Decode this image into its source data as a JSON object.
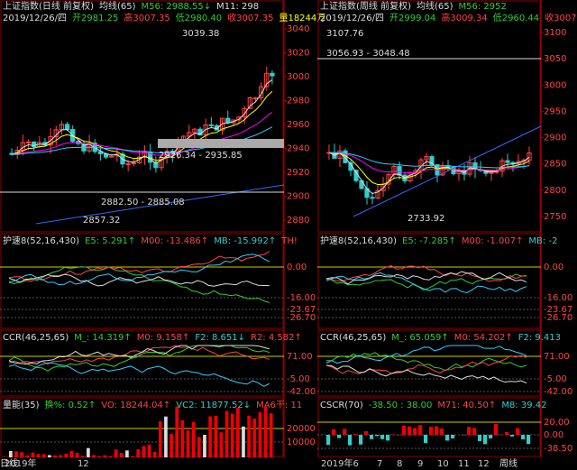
{
  "left": {
    "title": "上证指数(日线 前复权)",
    "header": [
      "均线(65)",
      "M56: 2988.55↓",
      "M11: 298"
    ],
    "info": [
      "2019/12/26/四",
      "开2981.25",
      "高3007.35",
      "低2980.40",
      "收3007.35",
      "量18244万"
    ],
    "axis": [
      "3040",
      "3020",
      "3000",
      "2980",
      "2960",
      "2940",
      "2920",
      "2900",
      "2880"
    ],
    "notes": [
      "3039.38",
      "2926.34 - 2935.85",
      "2882.50 - 2885.08",
      "2857.32"
    ],
    "panels": [
      {
        "header": [
          "护速8(52,16,430)",
          "E5: 5.291↑",
          "M00: -13.486↑",
          "MB: -15.992↑",
          "TH!"
        ],
        "axis": [
          "0.00",
          "-16.00",
          "-23.67",
          "-26.70"
        ]
      },
      {
        "header": [
          "CCR(46,25,65)",
          "M_: 14.319↑",
          "M0: 9.158↑",
          "F2: 8.651↓",
          "R2: 4.582↑"
        ],
        "axis": [
          "71.00",
          "-5.00",
          "-42.00"
        ]
      },
      {
        "header": [
          "量能(35)",
          "换%: 0.52↑",
          "VO: 18244.04↑",
          "VC2: 11877.52↓",
          "MA6干: 11"
        ],
        "axis": [
          "20000",
          "10000"
        ]
      }
    ],
    "footer": [
      "2019年",
      "12"
    ],
    "period": "日线"
  },
  "right": {
    "title": "上证指数(周线 前复权)",
    "header": [
      "均线(65)",
      "M56: 2952"
    ],
    "info": [
      "2019/12/26/四",
      "开2999.04",
      "高3009.34",
      "低2960.44",
      "收3007.35"
    ],
    "axis": [
      "3100",
      "3050",
      "3000",
      "2950",
      "2900",
      "2850",
      "2800",
      "2750"
    ],
    "notes": [
      "3107.76",
      "3056.93 - 3048.48",
      "2733.92"
    ],
    "panels": [
      {
        "header": [
          "护速8(52,16,430)",
          "E5: -7.285↑",
          "M00: -1.007↑",
          "MB: -2"
        ],
        "axis": [
          "0.00",
          "-16.00",
          "-23.67",
          "-26.70"
        ]
      },
      {
        "header": [
          "CCR(46,25,65)",
          "M_: 65.059↑",
          "M0: 54.202↑",
          "F2: 9.413"
        ],
        "axis": [
          "71.00",
          "-5.00",
          "-42.00"
        ]
      },
      {
        "header": [
          "CSCR(70)",
          "-38.50 : 38.00",
          "M71: 40.50↑",
          "M8: 39.42"
        ],
        "axis": [
          "20.00",
          "0.00",
          "-38.50"
        ]
      }
    ],
    "footer": [
      "2019年6",
      "7",
      "8",
      "9",
      "10",
      "11",
      "12"
    ],
    "period": "周线"
  }
}
